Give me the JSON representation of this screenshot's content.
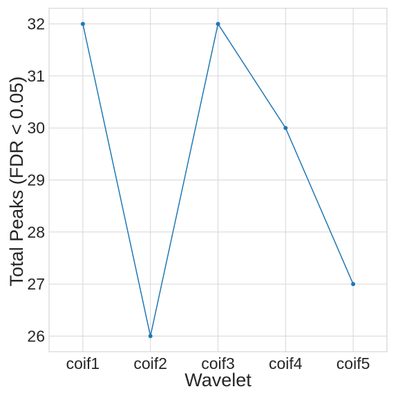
{
  "chart_data": {
    "type": "line",
    "title": "",
    "xlabel": "Wavelet",
    "ylabel": "Total Peaks (FDR < 0.05)",
    "categories": [
      "coif1",
      "coif2",
      "coif3",
      "coif4",
      "coif5"
    ],
    "series": [
      {
        "values": [
          32,
          26,
          32,
          30,
          27
        ],
        "color": "#1f77b4",
        "marker": "circle"
      }
    ],
    "yticks": [
      26,
      27,
      28,
      29,
      30,
      31,
      32
    ],
    "ylim": [
      25.7,
      32.3
    ],
    "grid": true,
    "legend": "none"
  }
}
